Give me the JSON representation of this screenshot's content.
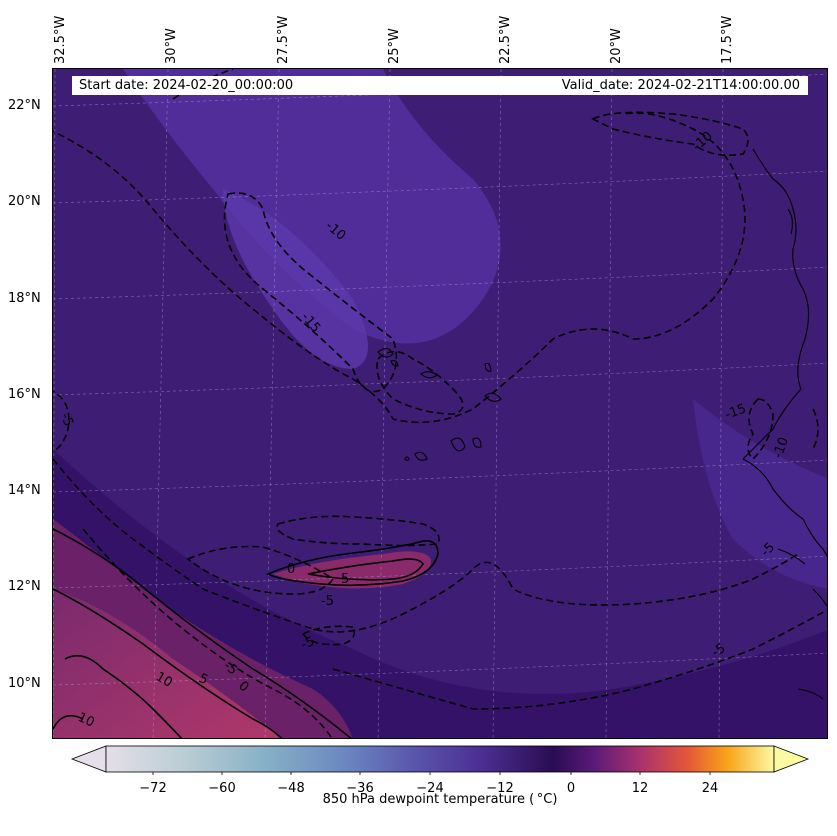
{
  "header": {
    "start_label": "Start date: 2024-02-20_00:00:00",
    "valid_label": "Valid_date: 2024-02-21T14:00:00.00"
  },
  "axes": {
    "lon_labels": [
      "32.5°W",
      "30°W",
      "27.5°W",
      "25°W",
      "22.5°W",
      "20°W",
      "17.5°W"
    ],
    "lat_labels": [
      "22°N",
      "20°N",
      "18°N",
      "16°N",
      "14°N",
      "12°N",
      "10°N"
    ]
  },
  "contour_labels": [
    "-10",
    "-10",
    "-15",
    "-15",
    "-10",
    "-5",
    "0",
    "5",
    "-5",
    "-5",
    "-5",
    "10",
    "5",
    "0",
    "10",
    "-5",
    "-5"
  ],
  "colorbar": {
    "title": "850 hPa dewpoint temperature ($^\\circ$C)",
    "title_display": "850 hPa dewpoint temperature ( °C)",
    "ticks": [
      "−72",
      "−60",
      "−48",
      "−36",
      "−24",
      "−12",
      "0",
      "12",
      "24"
    ],
    "colors": {
      "very_cold": "#e2dce6",
      "cold": "#7aa8c4",
      "cool": "#5b4fa8",
      "zero": "#2d0f55",
      "warm": "#b0356a",
      "hot": "#f48a15",
      "very_hot": "#fbfca6"
    }
  },
  "map": {
    "background_color": "#3f1f78",
    "moist_band_color": "#522c93",
    "warm_region_color": "#a83567"
  }
}
